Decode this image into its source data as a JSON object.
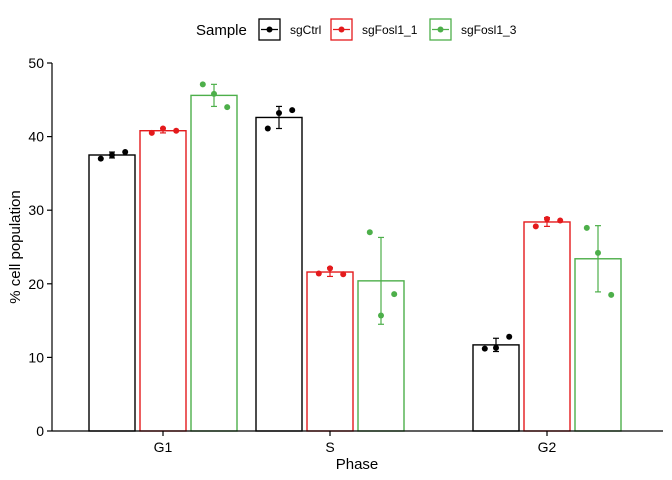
{
  "chart_data": {
    "type": "bar",
    "xlabel": "Phase",
    "ylabel": "% cell population",
    "ylim": [
      0,
      50
    ],
    "yticks": [
      0,
      10,
      20,
      30,
      40,
      50
    ],
    "categories": [
      "G1",
      "S",
      "G2"
    ],
    "legend": {
      "title": "Sample",
      "placement": "top"
    },
    "grid": false,
    "series": [
      {
        "name": "sgCtrl",
        "color": "#000000",
        "values": [
          37.5,
          42.6,
          11.7
        ],
        "error": [
          0.4,
          1.5,
          0.9
        ],
        "points": [
          [
            37.0,
            37.5,
            37.9
          ],
          [
            41.1,
            43.2,
            43.6
          ],
          [
            11.2,
            11.3,
            12.8
          ]
        ]
      },
      {
        "name": "sgFosl1_1",
        "color": "#e41a1c",
        "values": [
          40.8,
          21.6,
          28.4
        ],
        "error": [
          0.3,
          0.6,
          0.6
        ],
        "points": [
          [
            40.5,
            41.1,
            40.8
          ],
          [
            21.4,
            22.1,
            21.3
          ],
          [
            27.8,
            28.8,
            28.6
          ]
        ]
      },
      {
        "name": "sgFosl1_3",
        "color": "#4daf4a",
        "values": [
          45.6,
          20.4,
          23.4
        ],
        "error": [
          1.5,
          5.9,
          4.5
        ],
        "points": [
          [
            47.1,
            45.8,
            44.0
          ],
          [
            27.0,
            15.7,
            18.6
          ],
          [
            27.6,
            24.2,
            18.5
          ]
        ]
      }
    ]
  }
}
